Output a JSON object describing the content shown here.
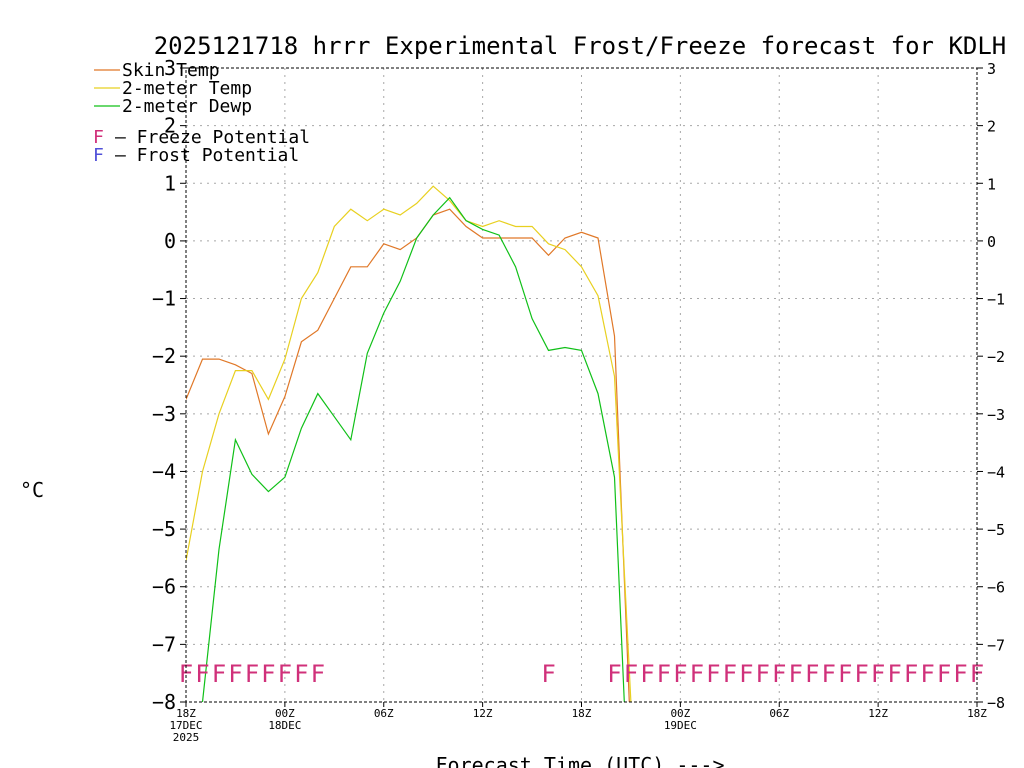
{
  "chart_data": {
    "type": "line",
    "title": "2025121718 hrrr Experimental Frost/Freeze forecast for KDLH",
    "xlabel": "Forecast Time (UTC) --->",
    "ylabel": "°C",
    "ylim": [
      -8,
      3
    ],
    "xlim": [
      0,
      48
    ],
    "yticks": [
      -8,
      -7,
      -6,
      -5,
      -4,
      -3,
      -2,
      -1,
      0,
      1,
      2,
      3
    ],
    "ytick_labels": [
      "−8",
      "−7",
      "−6",
      "−5",
      "−4",
      "−3",
      "−2",
      "−1",
      "0",
      "1",
      "2",
      "3"
    ],
    "xticks": [
      {
        "x": 0,
        "lines": [
          "18Z",
          "17DEC",
          "2025"
        ]
      },
      {
        "x": 6,
        "lines": [
          "00Z",
          "18DEC"
        ]
      },
      {
        "x": 12,
        "lines": [
          "06Z"
        ]
      },
      {
        "x": 18,
        "lines": [
          "12Z"
        ]
      },
      {
        "x": 24,
        "lines": [
          "18Z"
        ]
      },
      {
        "x": 30,
        "lines": [
          "00Z",
          "19DEC"
        ]
      },
      {
        "x": 36,
        "lines": [
          "06Z"
        ]
      },
      {
        "x": 42,
        "lines": [
          "12Z"
        ]
      },
      {
        "x": 48,
        "lines": [
          "18Z"
        ]
      }
    ],
    "grid": true,
    "series": [
      {
        "name": "Skin Temp",
        "legend": "Skin Temp",
        "color": "#e07828",
        "x": [
          0,
          1,
          2,
          3,
          4,
          5,
          6,
          7,
          8,
          9,
          10,
          11,
          12,
          13,
          14,
          15,
          16,
          17,
          18,
          19,
          20,
          21,
          22,
          23,
          24,
          25,
          26,
          26.9
        ],
        "values": [
          -2.75,
          -2.05,
          -2.05,
          -2.15,
          -2.3,
          -3.35,
          -2.7,
          -1.75,
          -1.55,
          -1.0,
          -0.45,
          -0.45,
          -0.05,
          -0.15,
          0.05,
          0.45,
          0.55,
          0.25,
          0.05,
          0.05,
          0.05,
          0.05,
          -0.25,
          0.05,
          0.15,
          0.05,
          -1.65,
          -8.0
        ]
      },
      {
        "name": "2-meter Temp",
        "legend": "2-meter Temp",
        "color": "#e8d020",
        "x": [
          0,
          1,
          2,
          3,
          4,
          5,
          6,
          7,
          8,
          9,
          10,
          11,
          12,
          13,
          14,
          15,
          16,
          17,
          18,
          19,
          20,
          21,
          22,
          23,
          24,
          25,
          26,
          27
        ],
        "values": [
          -5.55,
          -4.0,
          -3.0,
          -2.25,
          -2.25,
          -2.75,
          -2.05,
          -1.0,
          -0.55,
          0.25,
          0.55,
          0.35,
          0.55,
          0.45,
          0.65,
          0.95,
          0.7,
          0.35,
          0.25,
          0.35,
          0.25,
          0.25,
          -0.05,
          -0.15,
          -0.45,
          -0.95,
          -2.35,
          -8.0
        ]
      },
      {
        "name": "2-meter Dewp",
        "legend": "2-meter Dewp",
        "color": "#10c018",
        "x": [
          1,
          2,
          3,
          4,
          5,
          6,
          7,
          8,
          9,
          10,
          11,
          12,
          13,
          14,
          15,
          16,
          17,
          18,
          19,
          20,
          21,
          22,
          23,
          24,
          25,
          26,
          26.6
        ],
        "values": [
          -8.0,
          -5.35,
          -3.45,
          -4.05,
          -4.35,
          -4.1,
          -3.25,
          -2.65,
          -3.05,
          -3.45,
          -1.95,
          -1.25,
          -0.7,
          0.05,
          0.45,
          0.75,
          0.35,
          0.2,
          0.1,
          -0.45,
          -1.35,
          -1.9,
          -1.85,
          -1.9,
          -2.65,
          -4.1,
          -8.0
        ]
      }
    ],
    "potential_legend": [
      {
        "letter": "F",
        "text": "– Freeze Potential",
        "color": "#d0307a"
      },
      {
        "letter": "F",
        "text": "– Frost Potential",
        "color": "#5050d8"
      }
    ],
    "freeze_markers": {
      "letter": "F",
      "color": "#d0307a",
      "y": -7.5,
      "x": [
        0,
        1,
        2,
        3,
        4,
        5,
        6,
        7,
        8,
        22,
        26,
        27,
        28,
        29,
        30,
        31,
        32,
        33,
        34,
        35,
        36,
        37,
        38,
        39,
        40,
        41,
        42,
        43,
        44,
        45,
        46,
        47,
        48
      ]
    }
  }
}
